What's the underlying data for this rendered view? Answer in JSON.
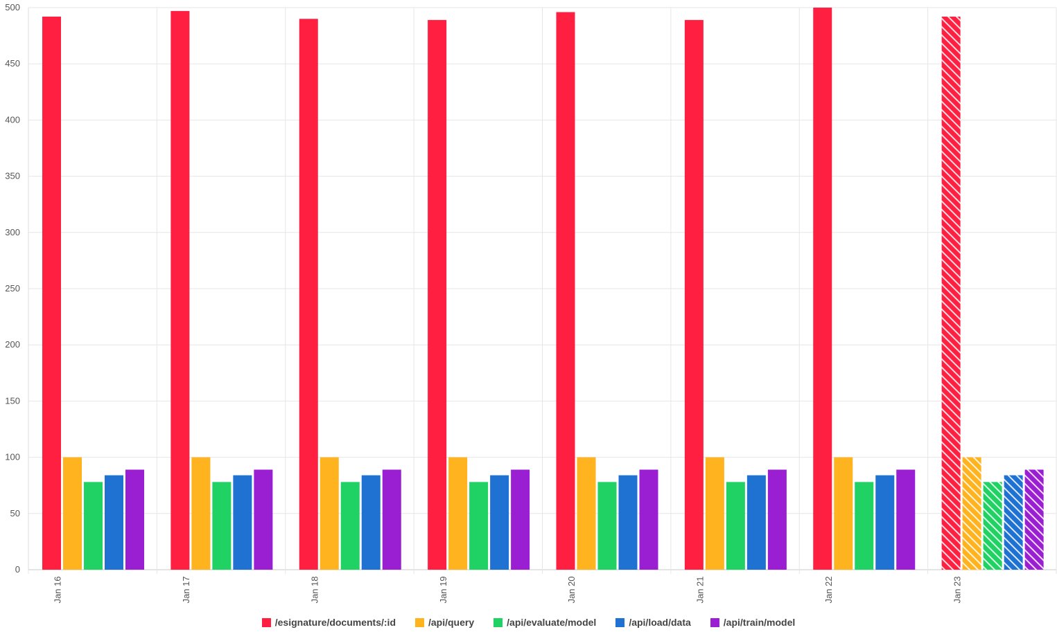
{
  "chart_data": {
    "type": "bar",
    "categories": [
      "Jan 16",
      "Jan 17",
      "Jan 18",
      "Jan 19",
      "Jan 20",
      "Jan 21",
      "Jan 22",
      "Jan 23"
    ],
    "ylim": [
      0,
      500
    ],
    "yticks": [
      0,
      50,
      100,
      150,
      200,
      250,
      300,
      350,
      400,
      450,
      500
    ],
    "grid": true,
    "legend_position": "bottom",
    "hatched_categories": [
      "Jan 23"
    ],
    "series": [
      {
        "name": "/esignature/documents/:id",
        "color": "#ff1f40",
        "values": [
          492,
          497,
          490,
          489,
          496,
          489,
          500,
          492
        ]
      },
      {
        "name": "/api/query",
        "color": "#ffb31f",
        "values": [
          100,
          100,
          100,
          100,
          100,
          100,
          100,
          100
        ]
      },
      {
        "name": "/api/evaluate/model",
        "color": "#1fd263",
        "values": [
          78,
          78,
          78,
          78,
          78,
          78,
          78,
          78
        ]
      },
      {
        "name": "/api/load/data",
        "color": "#1f72d2",
        "values": [
          84,
          84,
          84,
          84,
          84,
          84,
          84,
          84
        ]
      },
      {
        "name": "/api/train/model",
        "color": "#9b1fd2",
        "values": [
          89,
          89,
          89,
          89,
          89,
          89,
          89,
          89
        ]
      }
    ]
  }
}
